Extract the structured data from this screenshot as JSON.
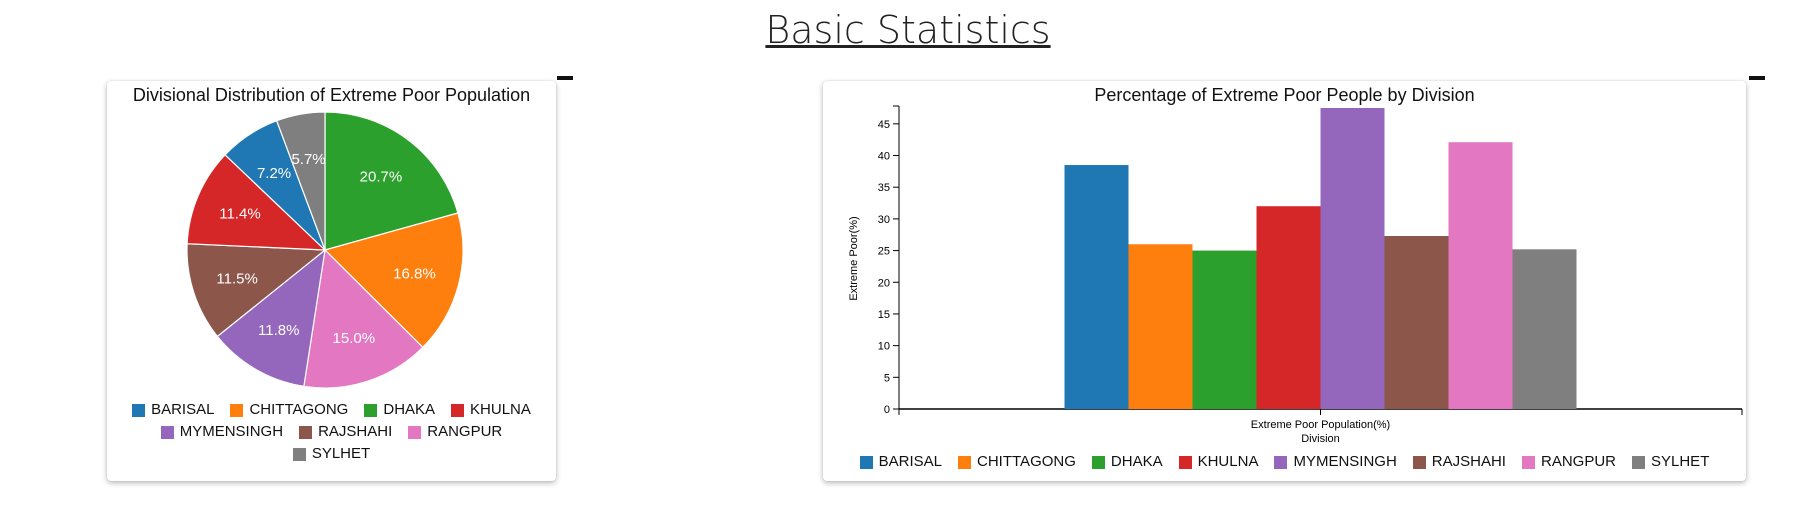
{
  "page": {
    "title": "Basic Statistics"
  },
  "colors": {
    "BARISAL": "#1f77b4",
    "CHITTAGONG": "#ff7f0e",
    "DHAKA": "#2ca02c",
    "KHULNA": "#d62728",
    "MYMENSINGH": "#9467bd",
    "RAJSHAHI": "#8c564b",
    "RANGPUR": "#e377c2",
    "SYLHET": "#7f7f7f"
  },
  "chart_data": [
    {
      "type": "pie",
      "title": "Divisional Distribution of Extreme Poor Population",
      "categories": [
        "DHAKA",
        "CHITTAGONG",
        "RANGPUR",
        "MYMENSINGH",
        "RAJSHAHI",
        "KHULNA",
        "BARISAL",
        "SYLHET"
      ],
      "values": [
        20.7,
        16.8,
        15.0,
        11.8,
        11.5,
        11.4,
        7.2,
        5.7
      ],
      "labels": [
        "20.7%",
        "16.8%",
        "15.0%",
        "11.8%",
        "11.5%",
        "11.4%",
        "7.2%",
        "5.7%"
      ],
      "legend": [
        "BARISAL",
        "CHITTAGONG",
        "DHAKA",
        "KHULNA",
        "MYMENSINGH",
        "RAJSHAHI",
        "RANGPUR",
        "SYLHET"
      ],
      "legend_placement": "bottom"
    },
    {
      "type": "bar",
      "title": "Percentage of Extreme Poor People by Division",
      "categories": [
        "Extreme Poor Population(%)"
      ],
      "series": [
        {
          "name": "BARISAL",
          "values": [
            38.5
          ]
        },
        {
          "name": "CHITTAGONG",
          "values": [
            26
          ]
        },
        {
          "name": "DHAKA",
          "values": [
            25
          ]
        },
        {
          "name": "KHULNA",
          "values": [
            32
          ]
        },
        {
          "name": "MYMENSINGH",
          "values": [
            47.5
          ]
        },
        {
          "name": "RAJSHAHI",
          "values": [
            27.3
          ]
        },
        {
          "name": "RANGPUR",
          "values": [
            42.1
          ]
        },
        {
          "name": "SYLHET",
          "values": [
            25.2
          ]
        }
      ],
      "xlabel": "Division",
      "ylabel": "Extreme Poor(%)",
      "ylim": [
        0,
        47.5
      ],
      "yticks": [
        0,
        5,
        10,
        15,
        20,
        25,
        30,
        35,
        40,
        45
      ],
      "grid": false,
      "legend_placement": "bottom"
    }
  ]
}
